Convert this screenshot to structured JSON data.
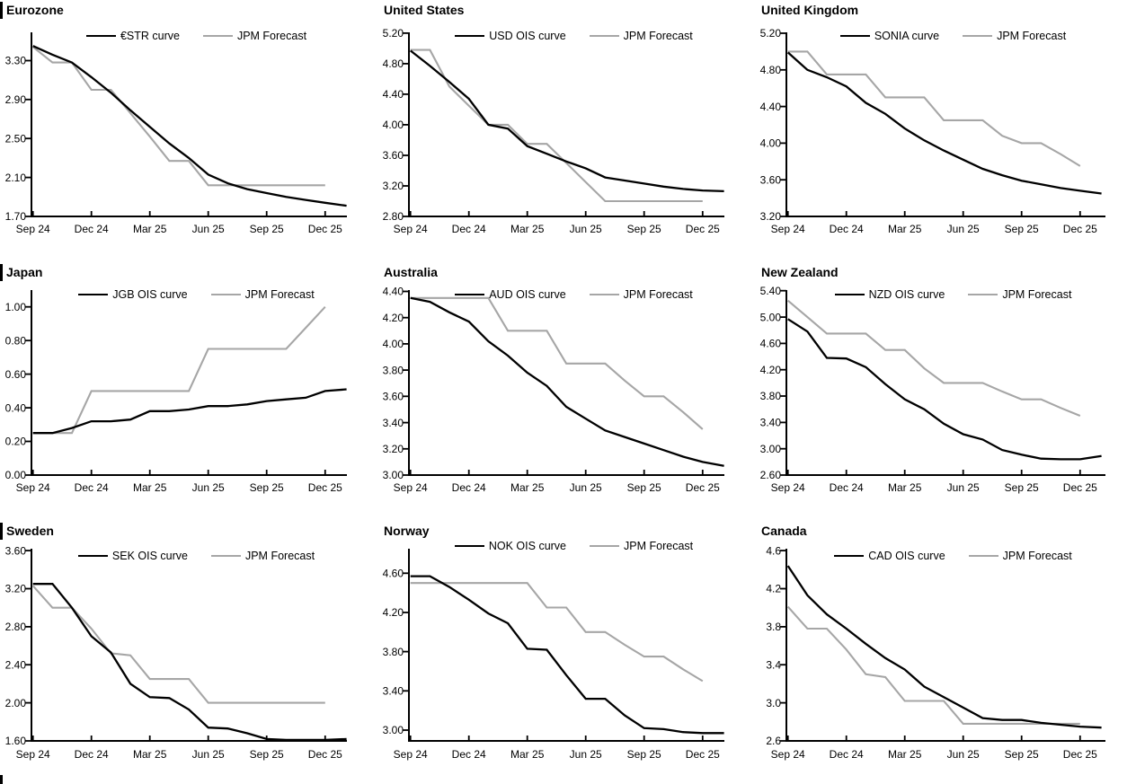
{
  "colors": {
    "main_line": "#000000",
    "forecast_line": "#a6a6a6",
    "text": "#000000",
    "background": "#ffffff"
  },
  "chart_data": [
    {
      "type": "line",
      "title": "Eurozone",
      "x_tick_labels": [
        "Sep 24",
        "Dec 24",
        "Mar 25",
        "Jun 25",
        "Sep 25",
        "Dec 25"
      ],
      "x_tick_positions": [
        0,
        3,
        6,
        9,
        12,
        15
      ],
      "y_tick_labels": [
        "1.70",
        "2.10",
        "2.50",
        "2.90",
        "3.30"
      ],
      "y_ticks": [
        1.7,
        2.1,
        2.5,
        2.9,
        3.3
      ],
      "ylim": [
        1.7,
        3.59
      ],
      "legend_position": "top-center",
      "grid": false,
      "series": [
        {
          "name": "€STR curve",
          "color": "#000000",
          "values": [
            3.45,
            3.36,
            3.28,
            3.13,
            2.97,
            2.79,
            2.62,
            2.45,
            2.3,
            2.13,
            2.04,
            1.98,
            1.94,
            1.9,
            1.87,
            1.84,
            1.81
          ]
        },
        {
          "name": "JPM Forecast",
          "color": "#a6a6a6",
          "values": [
            3.44,
            3.28,
            3.28,
            3.0,
            3.0,
            2.76,
            2.52,
            2.27,
            2.27,
            2.02,
            2.02,
            2.02,
            2.02,
            2.02,
            2.02,
            2.02
          ]
        }
      ]
    },
    {
      "type": "line",
      "title": "United States",
      "x_tick_labels": [
        "Sep 24",
        "Dec 24",
        "Mar 25",
        "Jun 25",
        "Sep 25",
        "Dec 25"
      ],
      "x_tick_positions": [
        0,
        3,
        6,
        9,
        12,
        15
      ],
      "y_tick_labels": [
        "2.80",
        "3.20",
        "3.60",
        "4.00",
        "4.40",
        "4.80",
        "5.20"
      ],
      "y_ticks": [
        2.8,
        3.2,
        3.6,
        4.0,
        4.4,
        4.8,
        5.2
      ],
      "ylim": [
        2.8,
        5.21
      ],
      "legend_position": "top-center",
      "grid": false,
      "series": [
        {
          "name": "USD OIS curve",
          "color": "#000000",
          "values": [
            4.97,
            4.77,
            4.56,
            4.34,
            4.0,
            3.95,
            3.72,
            3.62,
            3.52,
            3.43,
            3.31,
            3.27,
            3.23,
            3.19,
            3.16,
            3.14,
            3.13
          ]
        },
        {
          "name": "JPM Forecast",
          "color": "#a6a6a6",
          "values": [
            4.98,
            4.98,
            4.5,
            4.25,
            4.0,
            4.0,
            3.75,
            3.75,
            3.5,
            3.25,
            3.0,
            3.0,
            3.0,
            3.0,
            3.0,
            3.0
          ]
        }
      ]
    },
    {
      "type": "line",
      "title": "United Kingdom",
      "x_tick_labels": [
        "Sep 24",
        "Dec 24",
        "Mar 25",
        "Jun 25",
        "Sep 25",
        "Dec 25"
      ],
      "x_tick_positions": [
        0,
        3,
        6,
        9,
        12,
        15
      ],
      "y_tick_labels": [
        "3.20",
        "3.60",
        "4.00",
        "4.40",
        "4.80",
        "5.20"
      ],
      "y_ticks": [
        3.2,
        3.6,
        4.0,
        4.4,
        4.8,
        5.2
      ],
      "ylim": [
        3.2,
        5.21
      ],
      "legend_position": "top-center",
      "grid": false,
      "series": [
        {
          "name": "SONIA curve",
          "color": "#000000",
          "values": [
            4.99,
            4.8,
            4.72,
            4.62,
            4.44,
            4.32,
            4.16,
            4.03,
            3.92,
            3.82,
            3.72,
            3.65,
            3.59,
            3.55,
            3.51,
            3.48,
            3.45
          ]
        },
        {
          "name": "JPM Forecast",
          "color": "#a6a6a6",
          "values": [
            5.0,
            5.0,
            4.75,
            4.75,
            4.75,
            4.5,
            4.5,
            4.5,
            4.25,
            4.25,
            4.25,
            4.08,
            4.0,
            4.0,
            3.88,
            3.75
          ]
        }
      ]
    },
    {
      "type": "line",
      "title": "Japan",
      "x_tick_labels": [
        "Sep 24",
        "Dec 24",
        "Mar 25",
        "Jun 25",
        "Sep 25",
        "Dec 25"
      ],
      "x_tick_positions": [
        0,
        3,
        6,
        9,
        12,
        15
      ],
      "y_tick_labels": [
        "0.00",
        "0.20",
        "0.40",
        "0.60",
        "0.80",
        "1.00"
      ],
      "y_ticks": [
        0.0,
        0.2,
        0.4,
        0.6,
        0.8,
        1.0
      ],
      "ylim": [
        0.0,
        1.1
      ],
      "legend_position": "top-center",
      "grid": false,
      "series": [
        {
          "name": "JGB OIS curve",
          "color": "#000000",
          "values": [
            0.25,
            0.25,
            0.28,
            0.32,
            0.32,
            0.33,
            0.38,
            0.38,
            0.39,
            0.41,
            0.41,
            0.42,
            0.44,
            0.45,
            0.46,
            0.5,
            0.51
          ]
        },
        {
          "name": "JPM Forecast",
          "color": "#a6a6a6",
          "values": [
            0.25,
            0.25,
            0.25,
            0.5,
            0.5,
            0.5,
            0.5,
            0.5,
            0.5,
            0.75,
            0.75,
            0.75,
            0.75,
            0.75,
            0.875,
            1.0
          ]
        }
      ]
    },
    {
      "type": "line",
      "title": "Australia",
      "x_tick_labels": [
        "Sep 24",
        "Dec 24",
        "Mar 25",
        "Jun 25",
        "Sep 25",
        "Dec 25"
      ],
      "x_tick_positions": [
        0,
        3,
        6,
        9,
        12,
        15
      ],
      "y_tick_labels": [
        "3.00",
        "3.20",
        "3.40",
        "3.60",
        "3.80",
        "4.00",
        "4.20",
        "4.40"
      ],
      "y_ticks": [
        3.0,
        3.2,
        3.4,
        3.6,
        3.8,
        4.0,
        4.2,
        4.4
      ],
      "ylim": [
        3.0,
        4.41
      ],
      "legend_position": "top-center",
      "grid": false,
      "series": [
        {
          "name": "AUD OIS curve",
          "color": "#000000",
          "values": [
            4.35,
            4.32,
            4.24,
            4.17,
            4.02,
            3.91,
            3.78,
            3.68,
            3.52,
            3.43,
            3.34,
            3.29,
            3.24,
            3.19,
            3.14,
            3.1,
            3.07
          ]
        },
        {
          "name": "JPM Forecast",
          "color": "#a6a6a6",
          "values": [
            4.35,
            4.35,
            4.35,
            4.35,
            4.35,
            4.1,
            4.1,
            4.1,
            3.85,
            3.85,
            3.85,
            3.72,
            3.6,
            3.6,
            3.48,
            3.35
          ]
        }
      ]
    },
    {
      "type": "line",
      "title": "New Zealand",
      "x_tick_labels": [
        "Sep 24",
        "Dec 24",
        "Mar 25",
        "Jun 25",
        "Sep 25",
        "Dec 25"
      ],
      "x_tick_positions": [
        0,
        3,
        6,
        9,
        12,
        15
      ],
      "y_tick_labels": [
        "2.60",
        "3.00",
        "3.40",
        "3.80",
        "4.20",
        "4.60",
        "5.00",
        "5.40"
      ],
      "y_ticks": [
        2.6,
        3.0,
        3.4,
        3.8,
        4.2,
        4.6,
        5.0,
        5.4
      ],
      "ylim": [
        2.6,
        5.41
      ],
      "legend_position": "top-center",
      "grid": false,
      "series": [
        {
          "name": "NZD OIS curve",
          "color": "#000000",
          "values": [
            4.97,
            4.78,
            4.38,
            4.37,
            4.24,
            3.98,
            3.75,
            3.6,
            3.38,
            3.22,
            3.14,
            2.98,
            2.91,
            2.85,
            2.84,
            2.84,
            2.89
          ]
        },
        {
          "name": "JPM Forecast",
          "color": "#a6a6a6",
          "values": [
            5.25,
            5.0,
            4.75,
            4.75,
            4.75,
            4.5,
            4.5,
            4.22,
            4.0,
            4.0,
            4.0,
            3.87,
            3.75,
            3.75,
            3.62,
            3.5
          ]
        }
      ]
    },
    {
      "type": "line",
      "title": "Sweden",
      "x_tick_labels": [
        "Sep 24",
        "Dec 24",
        "Mar 25",
        "Jun 25",
        "Sep 25",
        "Dec 25"
      ],
      "x_tick_positions": [
        0,
        3,
        6,
        9,
        12,
        15
      ],
      "y_tick_labels": [
        "1.60",
        "2.00",
        "2.40",
        "2.80",
        "3.20",
        "3.60"
      ],
      "y_ticks": [
        1.6,
        2.0,
        2.4,
        2.8,
        3.2,
        3.6
      ],
      "ylim": [
        1.6,
        3.62
      ],
      "legend_position": "top-center",
      "grid": false,
      "series": [
        {
          "name": "SEK OIS curve",
          "color": "#000000",
          "values": [
            3.25,
            3.25,
            3.0,
            2.7,
            2.53,
            2.2,
            2.06,
            2.05,
            1.93,
            1.74,
            1.73,
            1.68,
            1.62,
            1.61,
            1.61,
            1.61,
            1.62
          ]
        },
        {
          "name": "JPM Forecast",
          "color": "#a6a6a6",
          "values": [
            3.23,
            3.0,
            3.0,
            2.78,
            2.52,
            2.5,
            2.25,
            2.25,
            2.25,
            2.0,
            2.0,
            2.0,
            2.0,
            2.0,
            2.0,
            2.0
          ]
        }
      ]
    },
    {
      "type": "line",
      "title": "Norway",
      "x_tick_labels": [
        "Sep 24",
        "Dec 24",
        "Mar 25",
        "Jun 25",
        "Sep 25",
        "Dec 25"
      ],
      "x_tick_positions": [
        0,
        3,
        6,
        9,
        12,
        15
      ],
      "y_tick_labels": [
        "3.00",
        "3.40",
        "3.80",
        "4.20",
        "4.60"
      ],
      "y_ticks": [
        3.0,
        3.4,
        3.8,
        4.2,
        4.6
      ],
      "ylim": [
        2.89,
        4.85
      ],
      "legend_position": "top-center",
      "grid": false,
      "series": [
        {
          "name": "NOK OIS curve",
          "color": "#000000",
          "values": [
            4.57,
            4.57,
            4.46,
            4.33,
            4.19,
            4.09,
            3.83,
            3.82,
            3.56,
            3.32,
            3.32,
            3.15,
            3.02,
            3.01,
            2.98,
            2.97,
            2.97
          ]
        },
        {
          "name": "JPM Forecast",
          "color": "#a6a6a6",
          "values": [
            4.5,
            4.5,
            4.5,
            4.5,
            4.5,
            4.5,
            4.5,
            4.25,
            4.25,
            4.0,
            4.0,
            3.87,
            3.75,
            3.75,
            3.62,
            3.5
          ]
        }
      ]
    },
    {
      "type": "line",
      "title": "Canada",
      "x_tick_labels": [
        "Sep 24",
        "Dec 24",
        "Mar 25",
        "Jun 25",
        "Sep 25",
        "Dec 25"
      ],
      "x_tick_positions": [
        0,
        3,
        6,
        9,
        12,
        15
      ],
      "y_tick_labels": [
        "2.6",
        "3.0",
        "3.4",
        "3.8",
        "4.2",
        "4.6"
      ],
      "y_ticks": [
        2.6,
        3.0,
        3.4,
        3.8,
        4.2,
        4.6
      ],
      "ylim": [
        2.6,
        4.62
      ],
      "legend_position": "top-center",
      "grid": false,
      "series": [
        {
          "name": "CAD OIS curve",
          "color": "#000000",
          "values": [
            4.44,
            4.13,
            3.93,
            3.78,
            3.62,
            3.47,
            3.35,
            3.17,
            3.06,
            2.95,
            2.84,
            2.82,
            2.82,
            2.79,
            2.77,
            2.75,
            2.74
          ]
        },
        {
          "name": "JPM Forecast",
          "color": "#a6a6a6",
          "values": [
            4.01,
            3.78,
            3.78,
            3.56,
            3.3,
            3.27,
            3.02,
            3.02,
            3.02,
            2.78,
            2.78,
            2.78,
            2.78,
            2.78,
            2.78,
            2.78
          ]
        }
      ]
    }
  ]
}
